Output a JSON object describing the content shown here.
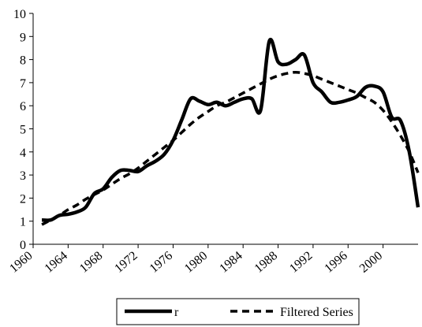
{
  "chart_data": {
    "type": "line",
    "x": [
      1961,
      1962,
      1963,
      1964,
      1965,
      1966,
      1967,
      1968,
      1969,
      1970,
      1971,
      1972,
      1973,
      1974,
      1975,
      1976,
      1977,
      1978,
      1979,
      1980,
      1981,
      1982,
      1983,
      1984,
      1985,
      1986,
      1987,
      1988,
      1989,
      1990,
      1991,
      1992,
      1993,
      1994,
      1995,
      1996,
      1997,
      1998,
      1999,
      2000,
      2001,
      2002,
      2003,
      2004
    ],
    "series": [
      {
        "name": "r",
        "color": "#000000",
        "dash": false,
        "values": [
          1.05,
          1.05,
          1.25,
          1.3,
          1.4,
          1.6,
          2.2,
          2.4,
          2.9,
          3.2,
          3.2,
          3.15,
          3.4,
          3.6,
          3.9,
          4.5,
          5.4,
          6.3,
          6.2,
          6.05,
          6.15,
          6.0,
          6.15,
          6.3,
          6.3,
          5.8,
          8.8,
          7.9,
          7.8,
          8.0,
          8.2,
          7.0,
          6.6,
          6.15,
          6.15,
          6.25,
          6.4,
          6.8,
          6.85,
          6.6,
          5.5,
          5.35,
          4.0,
          1.6
        ]
      },
      {
        "name": "Filtered Series",
        "color": "#000000",
        "dash": true,
        "values": [
          0.85,
          1.05,
          1.25,
          1.5,
          1.7,
          1.95,
          2.15,
          2.35,
          2.6,
          2.85,
          3.05,
          3.3,
          3.6,
          3.9,
          4.2,
          4.5,
          4.85,
          5.2,
          5.5,
          5.75,
          6.0,
          6.15,
          6.35,
          6.55,
          6.75,
          6.95,
          7.15,
          7.3,
          7.4,
          7.45,
          7.4,
          7.3,
          7.15,
          7.0,
          6.85,
          6.7,
          6.55,
          6.35,
          6.15,
          5.8,
          5.3,
          4.7,
          4.0,
          3.1
        ]
      }
    ],
    "xlim": [
      1960,
      2004
    ],
    "xticks": [
      1960,
      1964,
      1968,
      1972,
      1976,
      1980,
      1984,
      1988,
      1992,
      1996,
      2000
    ],
    "ylim": [
      0,
      10
    ],
    "yticks": [
      0,
      1,
      2,
      3,
      4,
      5,
      6,
      7,
      8,
      9,
      10
    ],
    "grid": false,
    "legend": "bottom"
  }
}
